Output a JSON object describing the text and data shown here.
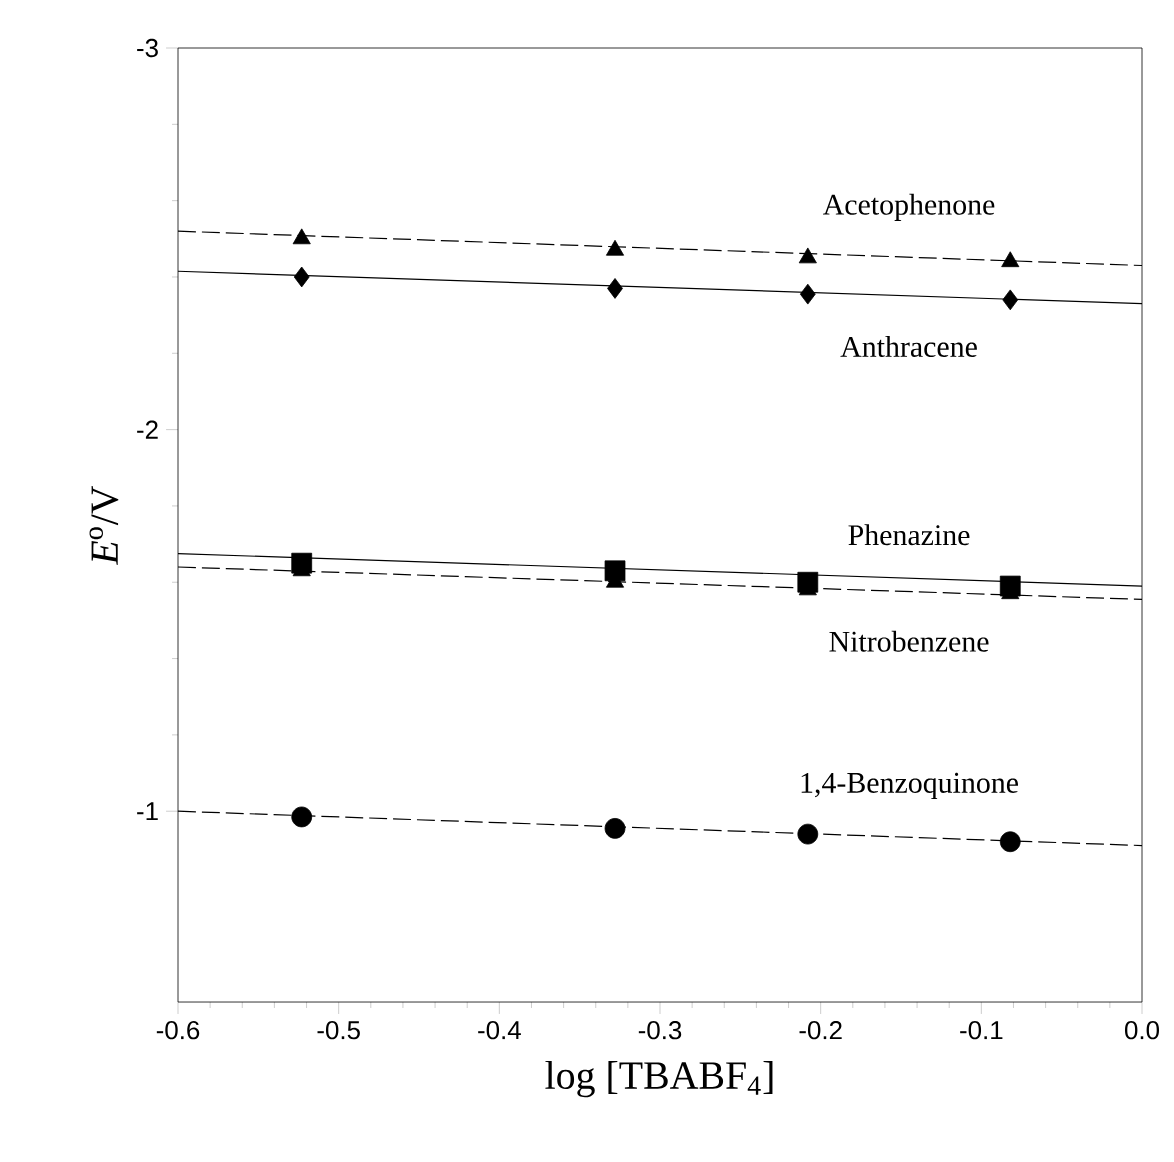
{
  "chart_data": {
    "type": "scatter",
    "xlabel": "log [TBABF$_{4}$]",
    "ylabel": "*E*$^{o}$/V",
    "xlim": [
      -0.6,
      0.0
    ],
    "ylim": [
      -0.5,
      -3
    ],
    "xticks": [
      -0.6,
      -0.5,
      -0.4,
      -0.3,
      -0.2,
      -0.1,
      {
        "value": 0.0,
        "label": "0.0"
      }
    ],
    "yticks": [
      -3,
      -2,
      -1
    ],
    "grid": false,
    "series": [
      {
        "name": "Acetophenone",
        "color": "#000000",
        "marker": "triangle",
        "x": [
          -0.523,
          -0.328,
          -0.208,
          -0.082
        ],
        "values": [
          -2.5,
          -2.47,
          -2.45,
          -2.44
        ]
      },
      {
        "type": "line",
        "color": "#000000",
        "line_style": "dashed",
        "marker": "none",
        "x": [
          -0.6,
          0.0
        ],
        "values": [
          -2.52,
          -2.43
        ]
      },
      {
        "name": "Anthracene",
        "color": "#000000",
        "marker": "diamond",
        "x": [
          -0.523,
          -0.328,
          -0.208,
          -0.082
        ],
        "values": [
          -2.4,
          -2.37,
          -2.355,
          -2.34
        ]
      },
      {
        "type": "line",
        "color": "#000000",
        "line_style": "solid",
        "marker": "none",
        "x": [
          -0.6,
          0.0
        ],
        "values": [
          -2.415,
          -2.33
        ]
      },
      {
        "name": "Phenazine",
        "color": "#000000",
        "marker": "square",
        "x": [
          -0.523,
          -0.328,
          -0.208,
          -0.082
        ],
        "values": [
          -1.65,
          -1.63,
          -1.6,
          -1.59
        ]
      },
      {
        "type": "line",
        "color": "#000000",
        "line_style": "solid",
        "marker": "none",
        "x": [
          -0.6,
          0.0
        ],
        "values": [
          -1.675,
          -1.59
        ]
      },
      {
        "name": "Nitrobenzene",
        "color": "#000000",
        "marker": "triangle",
        "x": [
          -0.523,
          -0.328,
          -0.208,
          -0.082
        ],
        "values": [
          -1.63,
          -1.6,
          -1.58,
          -1.57
        ]
      },
      {
        "type": "line",
        "color": "#000000",
        "line_style": "dashed",
        "marker": "none",
        "x": [
          -0.6,
          0.0
        ],
        "values": [
          -1.64,
          -1.555
        ]
      },
      {
        "name": "1,4-Benzoquinone",
        "color": "#000000",
        "marker": "circle",
        "x": [
          -0.523,
          -0.328,
          -0.208,
          -0.082
        ],
        "values": [
          -0.985,
          -0.955,
          -0.94,
          -0.92
        ]
      },
      {
        "type": "line",
        "color": "#000000",
        "line_style": "dashed",
        "marker": "none",
        "x": [
          -0.6,
          0.0
        ],
        "values": [
          -1.0,
          -0.91
        ]
      }
    ]
  }
}
